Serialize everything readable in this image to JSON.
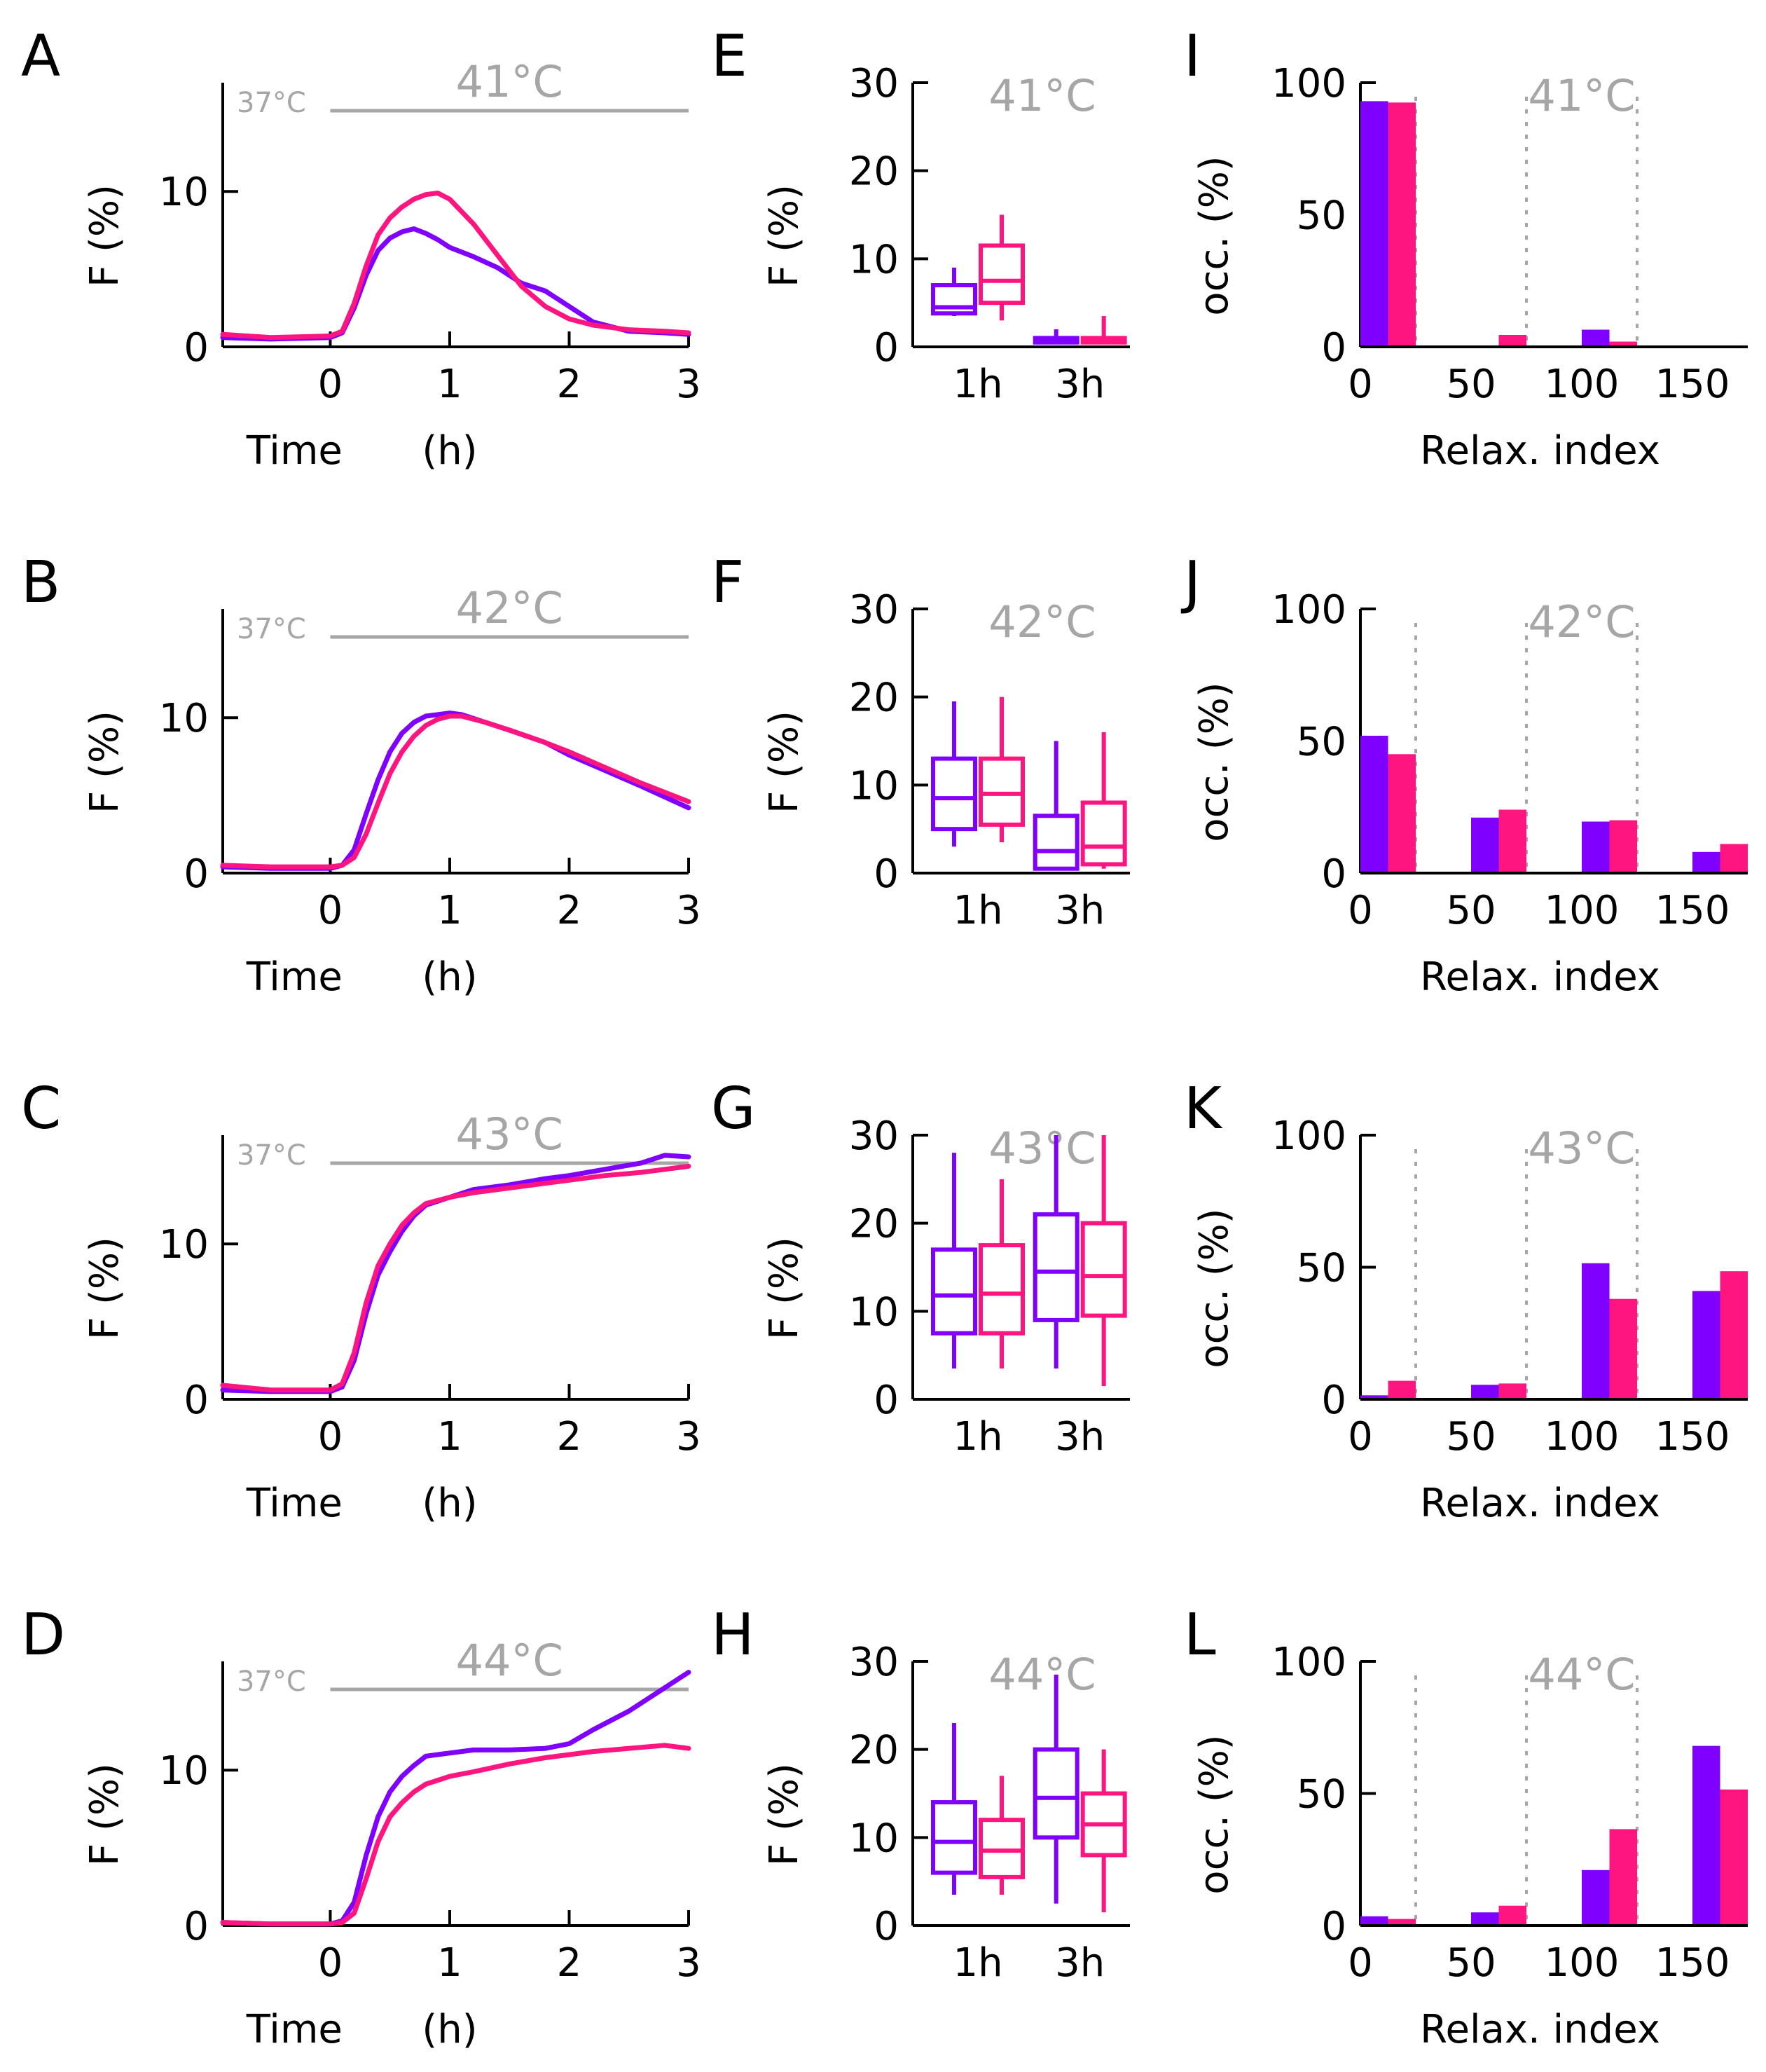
{
  "colors": {
    "series_a": "#7f00ff",
    "series_b": "#ff1580",
    "temp": "#a6a6a6",
    "axis": "#000000"
  },
  "chart_data": [
    {
      "type": "line",
      "panel": "A",
      "temp_label": "41°C",
      "base_label": "37°C",
      "xlabel": "Time",
      "xunit": "(h)",
      "ylabel": "F",
      "yunit": "(%)",
      "xlim": [
        -0.9,
        3
      ],
      "ylim": [
        0,
        17
      ],
      "xticks": [
        0,
        1,
        2,
        3
      ],
      "yticks": [
        0,
        10
      ],
      "series": [
        {
          "name": "purple",
          "x": [
            -0.9,
            -0.5,
            0,
            0.1,
            0.2,
            0.3,
            0.4,
            0.5,
            0.6,
            0.7,
            0.8,
            0.9,
            1.0,
            1.2,
            1.4,
            1.6,
            1.8,
            2.0,
            2.2,
            2.5,
            2.8,
            3.0
          ],
          "y": [
            0.6,
            0.5,
            0.6,
            0.9,
            2.5,
            4.6,
            6.2,
            7.0,
            7.4,
            7.6,
            7.3,
            6.9,
            6.4,
            5.8,
            5.1,
            4.1,
            3.6,
            2.6,
            1.6,
            1.0,
            0.9,
            0.8
          ]
        },
        {
          "name": "pink",
          "x": [
            -0.9,
            -0.5,
            0,
            0.1,
            0.2,
            0.3,
            0.4,
            0.5,
            0.6,
            0.7,
            0.8,
            0.9,
            1.0,
            1.2,
            1.4,
            1.6,
            1.8,
            2.0,
            2.2,
            2.5,
            2.8,
            3.0
          ],
          "y": [
            0.8,
            0.6,
            0.7,
            1.0,
            2.8,
            5.2,
            7.2,
            8.3,
            9.0,
            9.5,
            9.8,
            9.9,
            9.5,
            7.9,
            5.9,
            3.9,
            2.6,
            1.8,
            1.4,
            1.1,
            1.0,
            0.9
          ]
        }
      ]
    },
    {
      "type": "line",
      "panel": "B",
      "temp_label": "42°C",
      "base_label": "37°C",
      "xlabel": "Time",
      "xunit": "(h)",
      "ylabel": "F",
      "yunit": "(%)",
      "xlim": [
        -0.9,
        3
      ],
      "ylim": [
        0,
        17
      ],
      "xticks": [
        0,
        1,
        2,
        3
      ],
      "yticks": [
        0,
        10
      ],
      "series": [
        {
          "name": "purple",
          "x": [
            -0.9,
            -0.5,
            0,
            0.1,
            0.2,
            0.3,
            0.4,
            0.5,
            0.6,
            0.7,
            0.8,
            0.9,
            1.0,
            1.1,
            1.3,
            1.5,
            1.8,
            2.0,
            2.3,
            2.6,
            3.0
          ],
          "y": [
            0.4,
            0.3,
            0.3,
            0.5,
            1.5,
            3.8,
            6.0,
            7.8,
            9.0,
            9.7,
            10.1,
            10.2,
            10.3,
            10.2,
            9.7,
            9.2,
            8.4,
            7.6,
            6.6,
            5.6,
            4.2
          ]
        },
        {
          "name": "pink",
          "x": [
            -0.9,
            -0.5,
            0,
            0.1,
            0.2,
            0.3,
            0.4,
            0.5,
            0.6,
            0.7,
            0.8,
            0.9,
            1.0,
            1.1,
            1.3,
            1.5,
            1.8,
            2.0,
            2.3,
            2.6,
            3.0
          ],
          "y": [
            0.5,
            0.4,
            0.4,
            0.5,
            1.0,
            2.5,
            4.5,
            6.4,
            7.8,
            8.8,
            9.5,
            9.9,
            10.1,
            10.1,
            9.7,
            9.2,
            8.4,
            7.8,
            6.8,
            5.8,
            4.6
          ]
        }
      ]
    },
    {
      "type": "line",
      "panel": "C",
      "temp_label": "43°C",
      "base_label": "37°C",
      "xlabel": "Time",
      "xunit": "(h)",
      "ylabel": "F",
      "yunit": "(%)",
      "xlim": [
        -0.9,
        3
      ],
      "ylim": [
        0,
        17
      ],
      "xticks": [
        0,
        1,
        2,
        3
      ],
      "yticks": [
        0,
        10
      ],
      "series": [
        {
          "name": "purple",
          "x": [
            -0.9,
            -0.5,
            0,
            0.1,
            0.2,
            0.3,
            0.4,
            0.5,
            0.6,
            0.7,
            0.8,
            1.0,
            1.2,
            1.5,
            1.8,
            2.0,
            2.3,
            2.6,
            2.8,
            3.0
          ],
          "y": [
            0.6,
            0.5,
            0.5,
            0.8,
            2.5,
            5.5,
            8.0,
            9.5,
            10.8,
            11.8,
            12.5,
            13.0,
            13.5,
            13.8,
            14.2,
            14.4,
            14.8,
            15.2,
            15.7,
            15.6
          ]
        },
        {
          "name": "pink",
          "x": [
            -0.9,
            -0.5,
            0,
            0.1,
            0.2,
            0.3,
            0.4,
            0.5,
            0.6,
            0.7,
            0.8,
            1.0,
            1.2,
            1.5,
            1.8,
            2.0,
            2.3,
            2.6,
            2.8,
            3.0
          ],
          "y": [
            0.9,
            0.6,
            0.6,
            1.0,
            3.0,
            6.2,
            8.6,
            10.0,
            11.2,
            12.0,
            12.6,
            13.0,
            13.3,
            13.6,
            13.9,
            14.1,
            14.4,
            14.6,
            14.8,
            15.0
          ]
        }
      ]
    },
    {
      "type": "line",
      "panel": "D",
      "temp_label": "44°C",
      "base_label": "37°C",
      "xlabel": "Time",
      "xunit": "(h)",
      "ylabel": "F",
      "yunit": "(%)",
      "xlim": [
        -0.9,
        3
      ],
      "ylim": [
        0,
        17
      ],
      "xticks": [
        0,
        1,
        2,
        3
      ],
      "yticks": [
        0,
        10
      ],
      "series": [
        {
          "name": "purple",
          "x": [
            -0.9,
            -0.5,
            0,
            0.1,
            0.2,
            0.3,
            0.4,
            0.5,
            0.6,
            0.7,
            0.8,
            1.0,
            1.2,
            1.5,
            1.8,
            2.0,
            2.2,
            2.5,
            2.8,
            3.0
          ],
          "y": [
            0.2,
            0.1,
            0.1,
            0.3,
            1.5,
            4.5,
            7.0,
            8.6,
            9.6,
            10.3,
            10.9,
            11.1,
            11.3,
            11.3,
            11.4,
            11.7,
            12.6,
            13.8,
            15.3,
            16.3
          ]
        },
        {
          "name": "pink",
          "x": [
            -0.9,
            -0.5,
            0,
            0.1,
            0.2,
            0.3,
            0.4,
            0.5,
            0.6,
            0.7,
            0.8,
            1.0,
            1.2,
            1.5,
            1.8,
            2.0,
            2.2,
            2.5,
            2.8,
            3.0
          ],
          "y": [
            0.2,
            0.1,
            0.1,
            0.2,
            0.8,
            3.0,
            5.4,
            7.0,
            7.9,
            8.6,
            9.1,
            9.6,
            9.9,
            10.4,
            10.8,
            11.0,
            11.2,
            11.4,
            11.6,
            11.4
          ]
        }
      ]
    },
    {
      "type": "box",
      "panel": "E",
      "temp_label": "41°C",
      "ylabel": "F",
      "yunit": "(%)",
      "categories": [
        "1h",
        "3h"
      ],
      "ylim": [
        0,
        30
      ],
      "yticks": [
        0,
        10,
        20,
        30
      ],
      "series": [
        {
          "name": "purple",
          "boxes": [
            {
              "min": 3.5,
              "q1": 3.8,
              "median": 4.5,
              "q3": 7.0,
              "max": 9.0
            },
            {
              "min": 0.5,
              "q1": 0.5,
              "median": 0.8,
              "q3": 1.0,
              "max": 2.0
            }
          ]
        },
        {
          "name": "pink",
          "boxes": [
            {
              "min": 3.0,
              "q1": 5.0,
              "median": 7.5,
              "q3": 11.5,
              "max": 15.0
            },
            {
              "min": 0.4,
              "q1": 0.5,
              "median": 0.6,
              "q3": 1.0,
              "max": 3.5
            }
          ]
        }
      ]
    },
    {
      "type": "box",
      "panel": "F",
      "temp_label": "42°C",
      "ylabel": "F",
      "yunit": "(%)",
      "categories": [
        "1h",
        "3h"
      ],
      "ylim": [
        0,
        30
      ],
      "yticks": [
        0,
        10,
        20,
        30
      ],
      "series": [
        {
          "name": "purple",
          "boxes": [
            {
              "min": 3.0,
              "q1": 5.0,
              "median": 8.5,
              "q3": 13.0,
              "max": 19.5
            },
            {
              "min": 0.3,
              "q1": 0.5,
              "median": 2.5,
              "q3": 6.5,
              "max": 15.0
            }
          ]
        },
        {
          "name": "pink",
          "boxes": [
            {
              "min": 3.5,
              "q1": 5.5,
              "median": 9.0,
              "q3": 13.0,
              "max": 20.0
            },
            {
              "min": 0.5,
              "q1": 1.0,
              "median": 3.0,
              "q3": 8.0,
              "max": 16.0
            }
          ]
        }
      ]
    },
    {
      "type": "box",
      "panel": "G",
      "temp_label": "43°C",
      "ylabel": "F",
      "yunit": "(%)",
      "categories": [
        "1h",
        "3h"
      ],
      "ylim": [
        0,
        30
      ],
      "yticks": [
        0,
        10,
        20,
        30
      ],
      "series": [
        {
          "name": "purple",
          "boxes": [
            {
              "min": 3.5,
              "q1": 7.5,
              "median": 11.8,
              "q3": 17.0,
              "max": 28.0
            },
            {
              "min": 3.5,
              "q1": 9.0,
              "median": 14.5,
              "q3": 21.0,
              "max": 30.0
            }
          ]
        },
        {
          "name": "pink",
          "boxes": [
            {
              "min": 3.5,
              "q1": 7.5,
              "median": 12.0,
              "q3": 17.5,
              "max": 25.0
            },
            {
              "min": 1.5,
              "q1": 9.5,
              "median": 14.0,
              "q3": 20.0,
              "max": 30.0
            }
          ]
        }
      ]
    },
    {
      "type": "box",
      "panel": "H",
      "temp_label": "44°C",
      "ylabel": "F",
      "yunit": "(%)",
      "categories": [
        "1h",
        "3h"
      ],
      "ylim": [
        0,
        30
      ],
      "yticks": [
        0,
        10,
        20,
        30
      ],
      "series": [
        {
          "name": "purple",
          "boxes": [
            {
              "min": 3.5,
              "q1": 6.0,
              "median": 9.5,
              "q3": 14.0,
              "max": 23.0
            },
            {
              "min": 2.5,
              "q1": 10.0,
              "median": 14.5,
              "q3": 20.0,
              "max": 28.5
            }
          ]
        },
        {
          "name": "pink",
          "boxes": [
            {
              "min": 3.5,
              "q1": 5.5,
              "median": 8.5,
              "q3": 12.0,
              "max": 17.0
            },
            {
              "min": 1.5,
              "q1": 8.0,
              "median": 11.5,
              "q3": 15.0,
              "max": 20.0
            }
          ]
        }
      ]
    },
    {
      "type": "bar",
      "panel": "I",
      "temp_label": "41°C",
      "xlabel": "Relax. index",
      "ylabel": "occ.",
      "yunit": "(%)",
      "categories": [
        12.5,
        62.5,
        112.5,
        162.5
      ],
      "xlim": [
        0,
        175
      ],
      "ylim": [
        0,
        100
      ],
      "xticks": [
        0,
        50,
        100,
        150
      ],
      "yticks": [
        0,
        50,
        100
      ],
      "vlines": [
        25,
        75,
        125
      ],
      "series": [
        {
          "name": "purple",
          "values": [
            93,
            0.5,
            6.5,
            0.3
          ]
        },
        {
          "name": "pink",
          "values": [
            92.5,
            4.5,
            2,
            0.3
          ]
        }
      ]
    },
    {
      "type": "bar",
      "panel": "J",
      "temp_label": "42°C",
      "xlabel": "Relax. index",
      "ylabel": "occ.",
      "yunit": "(%)",
      "categories": [
        12.5,
        62.5,
        112.5,
        162.5
      ],
      "xlim": [
        0,
        175
      ],
      "ylim": [
        0,
        100
      ],
      "xticks": [
        0,
        50,
        100,
        150
      ],
      "yticks": [
        0,
        50,
        100
      ],
      "vlines": [
        25,
        75,
        125
      ],
      "series": [
        {
          "name": "purple",
          "values": [
            52,
            21,
            19.5,
            8
          ]
        },
        {
          "name": "pink",
          "values": [
            45,
            24,
            20,
            11
          ]
        }
      ]
    },
    {
      "type": "bar",
      "panel": "K",
      "temp_label": "43°C",
      "xlabel": "Relax. index",
      "ylabel": "occ.",
      "yunit": "(%)",
      "categories": [
        12.5,
        62.5,
        112.5,
        162.5
      ],
      "xlim": [
        0,
        175
      ],
      "ylim": [
        0,
        100
      ],
      "xticks": [
        0,
        50,
        100,
        150
      ],
      "yticks": [
        0,
        50,
        100
      ],
      "vlines": [
        25,
        75,
        125
      ],
      "series": [
        {
          "name": "purple",
          "values": [
            1.5,
            5.5,
            51.5,
            41
          ]
        },
        {
          "name": "pink",
          "values": [
            7,
            6,
            38,
            48.5
          ]
        }
      ]
    },
    {
      "type": "bar",
      "panel": "L",
      "temp_label": "44°C",
      "xlabel": "Relax. index",
      "ylabel": "occ.",
      "yunit": "(%)",
      "categories": [
        12.5,
        62.5,
        112.5,
        162.5
      ],
      "xlim": [
        0,
        175
      ],
      "ylim": [
        0,
        100
      ],
      "xticks": [
        0,
        50,
        100,
        150
      ],
      "yticks": [
        0,
        50,
        100
      ],
      "vlines": [
        25,
        75,
        125
      ],
      "series": [
        {
          "name": "purple",
          "values": [
            3.5,
            5,
            21,
            68
          ]
        },
        {
          "name": "pink",
          "values": [
            2.5,
            7.5,
            36.5,
            51.5
          ]
        }
      ]
    }
  ]
}
